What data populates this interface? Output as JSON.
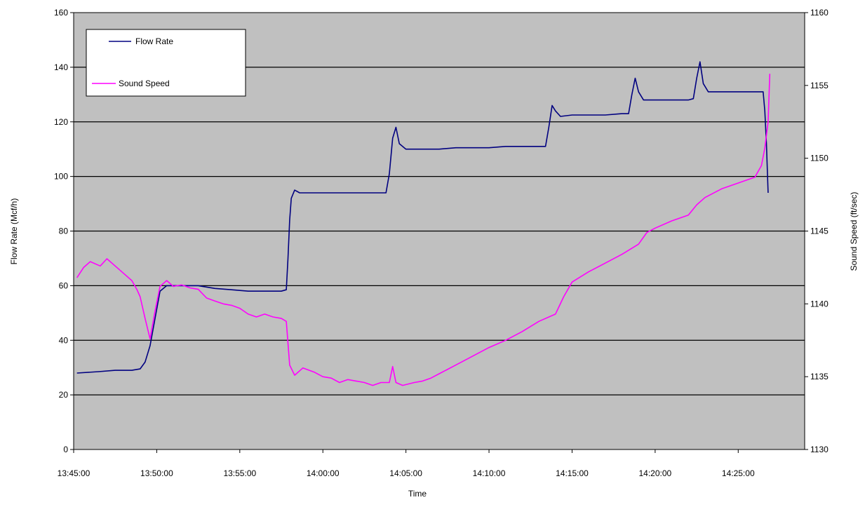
{
  "chart_data": {
    "type": "line",
    "xlabel": "Time",
    "ylabel_left": "Flow Rate (Mcf/h)",
    "ylabel_right": "Sound Speed (ft/sec)",
    "x_ticks": [
      "13:45:00",
      "13:50:00",
      "13:55:00",
      "14:00:00",
      "14:05:00",
      "14:10:00",
      "14:15:00",
      "14:20:00",
      "14:25:00"
    ],
    "x_range_min": [
      0,
      44
    ],
    "y_left_range": [
      0,
      160
    ],
    "y_left_ticks": [
      "0",
      "20",
      "40",
      "60",
      "80",
      "100",
      "120",
      "140",
      "160"
    ],
    "y_right_range": [
      1130,
      1160
    ],
    "y_right_ticks": [
      "1130",
      "1135",
      "1140",
      "1145",
      "1150",
      "1155",
      "1160"
    ],
    "grid": "horizontal",
    "plot_background": "#c0c0c0",
    "legend_position": "top-left",
    "series": [
      {
        "name": "Flow Rate",
        "axis": "left",
        "color": "#000080",
        "points": [
          [
            0.2,
            28
          ],
          [
            1.5,
            28.5
          ],
          [
            2.5,
            29
          ],
          [
            3.5,
            29
          ],
          [
            4.0,
            29.5
          ],
          [
            4.3,
            32
          ],
          [
            4.6,
            38
          ],
          [
            4.9,
            48
          ],
          [
            5.2,
            58
          ],
          [
            5.6,
            60
          ],
          [
            6.5,
            60
          ],
          [
            7.5,
            60
          ],
          [
            8.5,
            59
          ],
          [
            9.5,
            58.5
          ],
          [
            10.5,
            58
          ],
          [
            11.5,
            58
          ],
          [
            12.5,
            58
          ],
          [
            12.8,
            58.5
          ],
          [
            12.9,
            70
          ],
          [
            13.0,
            84
          ],
          [
            13.1,
            92
          ],
          [
            13.3,
            95
          ],
          [
            13.6,
            94
          ],
          [
            15,
            94
          ],
          [
            16,
            94
          ],
          [
            17,
            94
          ],
          [
            18,
            94
          ],
          [
            18.8,
            94
          ],
          [
            19.0,
            101
          ],
          [
            19.2,
            114
          ],
          [
            19.4,
            118
          ],
          [
            19.6,
            112
          ],
          [
            20.0,
            110
          ],
          [
            21,
            110
          ],
          [
            22,
            110
          ],
          [
            23,
            110.5
          ],
          [
            24,
            110.5
          ],
          [
            25,
            110.5
          ],
          [
            26,
            111
          ],
          [
            27,
            111
          ],
          [
            28.4,
            111
          ],
          [
            28.6,
            118
          ],
          [
            28.8,
            126
          ],
          [
            29.0,
            124
          ],
          [
            29.3,
            122
          ],
          [
            30,
            122.5
          ],
          [
            31,
            122.5
          ],
          [
            32,
            122.5
          ],
          [
            33,
            123
          ],
          [
            33.4,
            123
          ],
          [
            33.6,
            130
          ],
          [
            33.8,
            136
          ],
          [
            34.0,
            131
          ],
          [
            34.3,
            128
          ],
          [
            35,
            128
          ],
          [
            36,
            128
          ],
          [
            37,
            128
          ],
          [
            37.3,
            128.5
          ],
          [
            37.5,
            136
          ],
          [
            37.7,
            142
          ],
          [
            37.9,
            134
          ],
          [
            38.2,
            131
          ],
          [
            39,
            131
          ],
          [
            40,
            131
          ],
          [
            41,
            131
          ],
          [
            41.5,
            131
          ],
          [
            41.6,
            124
          ],
          [
            41.7,
            112
          ],
          [
            41.8,
            94
          ]
        ]
      },
      {
        "name": "Sound Speed",
        "axis": "right",
        "color": "#ff00ff",
        "points": [
          [
            0.2,
            1141.8
          ],
          [
            0.6,
            1142.5
          ],
          [
            1.0,
            1142.9
          ],
          [
            1.6,
            1142.6
          ],
          [
            2.0,
            1143.1
          ],
          [
            2.5,
            1142.6
          ],
          [
            3.0,
            1142.1
          ],
          [
            3.5,
            1141.6
          ],
          [
            3.8,
            1141.0
          ],
          [
            4.0,
            1140.5
          ],
          [
            4.3,
            1139.0
          ],
          [
            4.6,
            1137.6
          ],
          [
            4.9,
            1139.5
          ],
          [
            5.2,
            1141.2
          ],
          [
            5.6,
            1141.6
          ],
          [
            6.0,
            1141.2
          ],
          [
            6.5,
            1141.3
          ],
          [
            7.0,
            1141.1
          ],
          [
            7.5,
            1141.0
          ],
          [
            8.0,
            1140.4
          ],
          [
            8.5,
            1140.2
          ],
          [
            9.0,
            1140.0
          ],
          [
            9.5,
            1139.9
          ],
          [
            10.0,
            1139.7
          ],
          [
            10.5,
            1139.3
          ],
          [
            11.0,
            1139.1
          ],
          [
            11.5,
            1139.3
          ],
          [
            12.0,
            1139.1
          ],
          [
            12.5,
            1139.0
          ],
          [
            12.8,
            1138.8
          ],
          [
            13.0,
            1135.8
          ],
          [
            13.3,
            1135.1
          ],
          [
            13.8,
            1135.6
          ],
          [
            14.5,
            1135.3
          ],
          [
            15.0,
            1135.0
          ],
          [
            15.5,
            1134.9
          ],
          [
            16.0,
            1134.6
          ],
          [
            16.5,
            1134.8
          ],
          [
            17.0,
            1134.7
          ],
          [
            17.5,
            1134.6
          ],
          [
            18.0,
            1134.4
          ],
          [
            18.5,
            1134.6
          ],
          [
            19.0,
            1134.6
          ],
          [
            19.2,
            1135.7
          ],
          [
            19.4,
            1134.6
          ],
          [
            19.8,
            1134.4
          ],
          [
            20.5,
            1134.6
          ],
          [
            21.0,
            1134.7
          ],
          [
            21.5,
            1134.9
          ],
          [
            22.0,
            1135.2
          ],
          [
            23.0,
            1135.8
          ],
          [
            24.0,
            1136.4
          ],
          [
            25.0,
            1137.0
          ],
          [
            26.0,
            1137.5
          ],
          [
            27.0,
            1138.1
          ],
          [
            28.0,
            1138.8
          ],
          [
            29.0,
            1139.3
          ],
          [
            29.5,
            1140.5
          ],
          [
            30.0,
            1141.5
          ],
          [
            31.0,
            1142.2
          ],
          [
            32.0,
            1142.8
          ],
          [
            33.0,
            1143.4
          ],
          [
            34.0,
            1144.1
          ],
          [
            34.5,
            1144.9
          ],
          [
            35.0,
            1145.2
          ],
          [
            36.0,
            1145.7
          ],
          [
            37.0,
            1146.1
          ],
          [
            37.5,
            1146.8
          ],
          [
            38.0,
            1147.3
          ],
          [
            39.0,
            1147.9
          ],
          [
            40.0,
            1148.3
          ],
          [
            41.0,
            1148.7
          ],
          [
            41.4,
            1149.5
          ],
          [
            41.6,
            1150.7
          ],
          [
            41.8,
            1152.5
          ],
          [
            41.9,
            1155.8
          ]
        ]
      }
    ]
  }
}
